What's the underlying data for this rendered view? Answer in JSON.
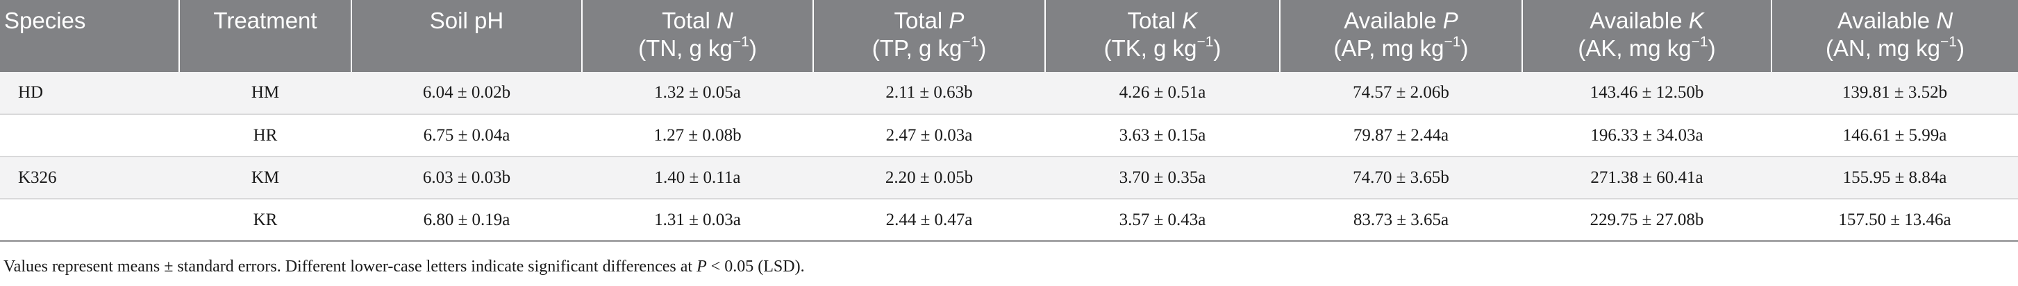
{
  "table": {
    "headers": [
      {
        "key": "species",
        "line1": "Species",
        "line2": ""
      },
      {
        "key": "treatment",
        "line1": "Treatment",
        "line2": ""
      },
      {
        "key": "ph",
        "line1": "Soil pH",
        "line2": ""
      },
      {
        "key": "tn",
        "line1_pre": "Total ",
        "line1_var": "N",
        "line2": "(TN, g kg",
        "unit_sup": "−1",
        "line2_post": ")"
      },
      {
        "key": "tp",
        "line1_pre": "Total ",
        "line1_var": "P",
        "line2": "(TP, g kg",
        "unit_sup": "−1",
        "line2_post": ")"
      },
      {
        "key": "tk",
        "line1_pre": "Total ",
        "line1_var": "K",
        "line2": "(TK, g kg",
        "unit_sup": "−1",
        "line2_post": ")"
      },
      {
        "key": "ap",
        "line1_pre": "Available ",
        "line1_var": "P",
        "line2": "(AP, mg kg",
        "unit_sup": "−1",
        "line2_post": ")"
      },
      {
        "key": "ak",
        "line1_pre": "Available ",
        "line1_var": "K",
        "line2": "(AK, mg kg",
        "unit_sup": "−1",
        "line2_post": ")"
      },
      {
        "key": "an",
        "line1_pre": "Available ",
        "line1_var": "N",
        "line2": "(AN, mg kg",
        "unit_sup": "−1",
        "line2_post": ")"
      }
    ],
    "rows": [
      {
        "species": "HD",
        "treatment": "HM",
        "ph": "6.04 ± 0.02b",
        "tn": "1.32 ± 0.05a",
        "tp": "2.11 ± 0.63b",
        "tk": "4.26 ± 0.51a",
        "ap": "74.57 ± 2.06b",
        "ak": "143.46 ± 12.50b",
        "an": "139.81 ± 3.52b"
      },
      {
        "species": "",
        "treatment": "HR",
        "ph": "6.75 ± 0.04a",
        "tn": "1.27 ± 0.08b",
        "tp": "2.47 ± 0.03a",
        "tk": "3.63 ± 0.15a",
        "ap": "79.87 ± 2.44a",
        "ak": "196.33 ± 34.03a",
        "an": "146.61 ± 5.99a"
      },
      {
        "species": "K326",
        "treatment": "KM",
        "ph": "6.03 ± 0.03b",
        "tn": "1.40 ± 0.11a",
        "tp": "2.20 ± 0.05b",
        "tk": "3.70 ± 0.35a",
        "ap": "74.70 ± 3.65b",
        "ak": "271.38 ± 60.41a",
        "an": "155.95 ± 8.84a"
      },
      {
        "species": "",
        "treatment": "KR",
        "ph": "6.80 ± 0.19a",
        "tn": "1.31 ± 0.03a",
        "tp": "2.44 ± 0.47a",
        "tk": "3.57 ± 0.43a",
        "ap": "83.73 ± 3.65a",
        "ak": "229.75 ± 27.08b",
        "an": "157.50 ± 13.46a"
      }
    ]
  },
  "footnote": {
    "pre": "Values represent means ± standard errors. Different lower-case letters indicate significant differences at ",
    "var": "P",
    "post": " < 0.05 (LSD)."
  },
  "colors": {
    "header_bg": "#818285",
    "header_text": "#ffffff",
    "row_shade": "#f3f3f4"
  }
}
